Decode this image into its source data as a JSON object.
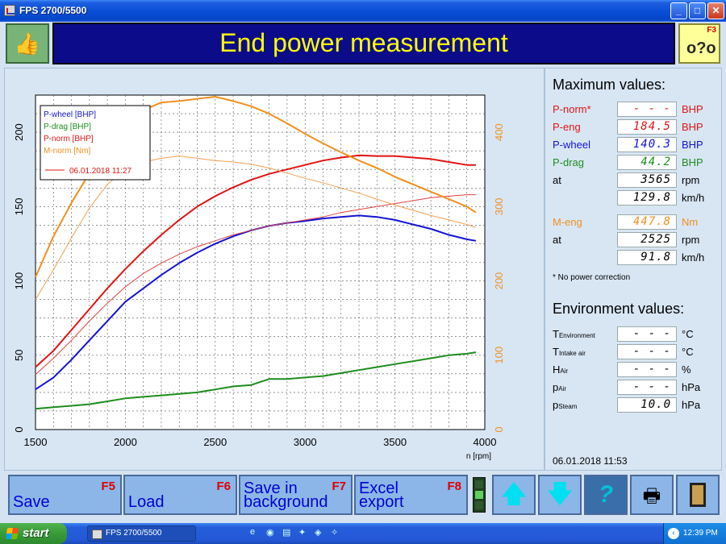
{
  "window": {
    "title": "FPS 2700/5500"
  },
  "header": {
    "ok_icon": "thumbs-up-icon",
    "title": "End power measurement",
    "f3_key": "F3",
    "f3_icon": "connection-help-icon"
  },
  "chart_data": {
    "type": "line",
    "title": "",
    "xlabel": "n [rpm]",
    "x_ticks": [
      "1500",
      "2000",
      "2500",
      "3000",
      "3500",
      "4000"
    ],
    "y_left_ticks": [
      "0",
      "50",
      "100",
      "150",
      "200"
    ],
    "y_right_ticks": [
      "0",
      "100",
      "200",
      "300",
      "400"
    ],
    "xlim": [
      1500,
      4000
    ],
    "ylim_left": [
      0,
      225
    ],
    "ylim_right": [
      0,
      450
    ],
    "grid": true,
    "legend_position": "top-left",
    "legend": [
      {
        "label": "P-wheel [BHP]",
        "color": "#1414d2"
      },
      {
        "label": "P-drag [BHP]",
        "color": "#1e8c1e"
      },
      {
        "label": "P-norm [BHP]",
        "color": "#e01414"
      },
      {
        "label": "M-norm [Nm]",
        "color": "#f0901e"
      }
    ],
    "reference_label": "06.01.2018 11:27",
    "series": [
      {
        "name": "P-wheel",
        "axis": "left",
        "color": "#1414d2",
        "width": 2,
        "x": [
          1500,
          1600,
          1700,
          1800,
          1900,
          2000,
          2100,
          2200,
          2300,
          2400,
          2500,
          2600,
          2700,
          2800,
          2900,
          3000,
          3100,
          3200,
          3300,
          3400,
          3500,
          3600,
          3700,
          3800,
          3900,
          3950
        ],
        "y": [
          27,
          35,
          47,
          60,
          73,
          86,
          95,
          104,
          112,
          119,
          125,
          130,
          134,
          137,
          139,
          140.3,
          142,
          143,
          144,
          143,
          141,
          138,
          135,
          131,
          128,
          127
        ]
      },
      {
        "name": "P-drag",
        "axis": "left",
        "color": "#1e8c1e",
        "width": 2,
        "x": [
          1500,
          1600,
          1700,
          1800,
          1900,
          2000,
          2100,
          2200,
          2300,
          2400,
          2500,
          2600,
          2700,
          2800,
          2900,
          3000,
          3100,
          3200,
          3300,
          3400,
          3500,
          3600,
          3700,
          3800,
          3900,
          3950
        ],
        "y": [
          14,
          15,
          16,
          17,
          19,
          21,
          22,
          23,
          24,
          25,
          27,
          29,
          30,
          34,
          34,
          35,
          36,
          38,
          40,
          42,
          44,
          46,
          48,
          50,
          51,
          52
        ]
      },
      {
        "name": "P-norm",
        "axis": "left",
        "color": "#e01414",
        "width": 2,
        "x": [
          1500,
          1600,
          1700,
          1800,
          1900,
          2000,
          2100,
          2200,
          2300,
          2400,
          2500,
          2600,
          2700,
          2800,
          2900,
          3000,
          3100,
          3200,
          3300,
          3400,
          3500,
          3600,
          3700,
          3800,
          3900,
          3950
        ],
        "y": [
          42,
          53,
          67,
          81,
          95,
          108,
          120,
          131,
          141,
          150,
          157,
          163,
          168,
          172,
          175,
          178,
          181,
          183,
          184.5,
          184,
          184,
          183,
          182,
          180,
          178,
          178
        ]
      },
      {
        "name": "P-norm (ref)",
        "axis": "left",
        "color": "#e04040",
        "width": 1,
        "x": [
          1500,
          1600,
          1700,
          1800,
          1900,
          2000,
          2100,
          2200,
          2300,
          2400,
          2500,
          2600,
          2700,
          2800,
          2900,
          3000,
          3100,
          3200,
          3300,
          3400,
          3500,
          3600,
          3700,
          3800,
          3900,
          3950
        ],
        "y": [
          37,
          48,
          60,
          73,
          85,
          96,
          105,
          112,
          118,
          123,
          127,
          131,
          134,
          137,
          139,
          141,
          143,
          146,
          148,
          150,
          152,
          154,
          156,
          157,
          158,
          158
        ]
      },
      {
        "name": "M-norm",
        "axis": "right",
        "color": "#f0901e",
        "width": 2,
        "x": [
          1500,
          1600,
          1700,
          1800,
          1900,
          2000,
          2100,
          2200,
          2300,
          2400,
          2500,
          2600,
          2700,
          2800,
          2900,
          3000,
          3100,
          3200,
          3300,
          3400,
          3500,
          3600,
          3700,
          3800,
          3900,
          3950
        ],
        "y": [
          205,
          260,
          305,
          345,
          385,
          415,
          430,
          440,
          442,
          445,
          447.8,
          442,
          435,
          425,
          412,
          398,
          385,
          373,
          362,
          352,
          340,
          330,
          320,
          310,
          300,
          292
        ]
      },
      {
        "name": "M-norm (ref)",
        "axis": "right",
        "color": "#f0a050",
        "width": 1,
        "x": [
          1500,
          1600,
          1700,
          1800,
          1900,
          2000,
          2100,
          2200,
          2300,
          2400,
          2500,
          2600,
          2700,
          2800,
          2900,
          3000,
          3100,
          3200,
          3300,
          3400,
          3500,
          3600,
          3700,
          3800,
          3900,
          3950
        ],
        "y": [
          175,
          215,
          258,
          298,
          330,
          350,
          360,
          365,
          368,
          365,
          362,
          360,
          357,
          352,
          345,
          338,
          332,
          325,
          318,
          310,
          302,
          295,
          288,
          282,
          276,
          272
        ]
      }
    ]
  },
  "max_values": {
    "heading": "Maximum values:",
    "rows": [
      {
        "label": "P-norm*",
        "value": "- - - -.-",
        "unit": "BHP",
        "color": "#e01414"
      },
      {
        "label": "P-eng",
        "value": "184.5",
        "unit": "BHP",
        "color": "#e01414"
      },
      {
        "label": "P-wheel",
        "value": "140.3",
        "unit": "BHP",
        "color": "#1414d2"
      },
      {
        "label": "P-drag",
        "value": "44.2",
        "unit": "BHP",
        "color": "#1e8c1e"
      },
      {
        "label": "at",
        "value": "3565",
        "unit": "rpm",
        "color": "#000000"
      },
      {
        "label": "",
        "value": "129.8",
        "unit": "km/h",
        "color": "#000000"
      },
      {
        "label": "M-eng",
        "value": "447.8",
        "unit": "Nm",
        "color": "#f0901e"
      },
      {
        "label": "at",
        "value": "2525",
        "unit": "rpm",
        "color": "#000000"
      },
      {
        "label": "",
        "value": "91.8",
        "unit": "km/h",
        "color": "#000000"
      }
    ],
    "note": "* No power correction"
  },
  "environment": {
    "heading": "Environment values:",
    "rows": [
      {
        "label": "T",
        "sub": "Environment",
        "value": "- - - -.-",
        "unit": "°C"
      },
      {
        "label": "T",
        "sub": "Intake air",
        "value": "- - - -.-",
        "unit": "°C"
      },
      {
        "label": "H",
        "sub": "Air",
        "value": "- - - -.-",
        "unit": "%"
      },
      {
        "label": "p",
        "sub": "Air",
        "value": "- - - -.-",
        "unit": "hPa"
      },
      {
        "label": "p",
        "sub": "Steam",
        "value": "10.0",
        "unit": "hPa"
      }
    ]
  },
  "timestamp": "06.01.2018   11:53",
  "bottom": {
    "buttons": [
      {
        "key": "F5",
        "label1": "Save",
        "label2": ""
      },
      {
        "key": "F6",
        "label1": "Load",
        "label2": ""
      },
      {
        "key": "F7",
        "label1": "Save in",
        "label2": "background"
      },
      {
        "key": "F8",
        "label1": "Excel",
        "label2": "export"
      }
    ],
    "icons": [
      "arrow-up-icon",
      "arrow-down-icon",
      "help-icon",
      "printer-icon",
      "exit-door-icon"
    ]
  },
  "taskbar": {
    "start_label": "start",
    "task_label": "FPS 2700/5500",
    "clock": "12:39 PM"
  }
}
